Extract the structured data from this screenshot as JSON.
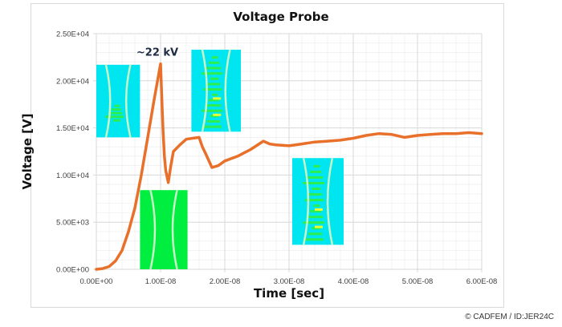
{
  "chart_data": {
    "type": "line",
    "title": "Voltage Probe",
    "xlabel": "Time [sec]",
    "ylabel": "Voltage [V]",
    "xlim": [
      0,
      6e-08
    ],
    "ylim": [
      0,
      25000
    ],
    "x_ticks": [
      "0.00E+00",
      "1.00E-08",
      "2.00E-08",
      "3.00E-08",
      "4.00E-08",
      "5.00E-08",
      "6.00E-08"
    ],
    "y_ticks": [
      "0.00E+00",
      "5.00E+03",
      "1.00E+04",
      "1.50E+04",
      "2.00E+04",
      "2.50E+04"
    ],
    "grid": true,
    "minor_grid": true,
    "legend": null,
    "series": [
      {
        "name": "Voltage Probe",
        "color": "#e8702a",
        "x": [
          0,
          1e-09,
          2e-09,
          3e-09,
          4e-09,
          5e-09,
          6e-09,
          7e-09,
          8e-09,
          9e-09,
          1e-08,
          1.02e-08,
          1.04e-08,
          1.06e-08,
          1.08e-08,
          1.12e-08,
          1.16e-08,
          1.2e-08,
          1.3e-08,
          1.4e-08,
          1.5e-08,
          1.6e-08,
          1.65e-08,
          1.7e-08,
          1.8e-08,
          1.9e-08,
          2e-08,
          2.2e-08,
          2.4e-08,
          2.6e-08,
          2.7e-08,
          2.8e-08,
          3e-08,
          3.2e-08,
          3.4e-08,
          3.6e-08,
          3.8e-08,
          4e-08,
          4.2e-08,
          4.4e-08,
          4.6e-08,
          4.8e-08,
          5e-08,
          5.2e-08,
          5.4e-08,
          5.6e-08,
          5.8e-08,
          6e-08
        ],
        "y": [
          0,
          80,
          300,
          900,
          2000,
          4000,
          6500,
          10000,
          14000,
          18000,
          21800,
          18000,
          14500,
          12000,
          10500,
          9200,
          11000,
          12500,
          13200,
          13800,
          13900,
          14000,
          13000,
          12300,
          10800,
          11000,
          11500,
          12000,
          12700,
          13600,
          13300,
          13200,
          13100,
          13300,
          13500,
          13600,
          13700,
          13900,
          14200,
          14400,
          14300,
          14000,
          14200,
          14300,
          14400,
          14400,
          14500,
          14400
        ]
      }
    ],
    "annotations": [
      {
        "text": "~22 kV",
        "x": 1e-08,
        "y": 22000
      }
    ],
    "insets": [
      {
        "name": "field-plot-early",
        "x0": 0.0,
        "x1": 6.8e-09,
        "y0": 14000,
        "y1": 21700,
        "background": "#00e6f0",
        "highlight": "#33ee33"
      },
      {
        "name": "field-plot-initial",
        "x0": 6.8e-09,
        "x1": 1.42e-08,
        "y0": 0,
        "y1": 8400,
        "background": "#00ee40",
        "highlight": "#00ee40"
      },
      {
        "name": "field-plot-peak",
        "x0": 1.48e-08,
        "x1": 2.25e-08,
        "y0": 14600,
        "y1": 23300,
        "background": "#00e6f0",
        "highlight": "#33ee33"
      },
      {
        "name": "field-plot-late",
        "x0": 3.05e-08,
        "x1": 3.85e-08,
        "y0": 2600,
        "y1": 11800,
        "background": "#00e6f0",
        "highlight": "#33ee33"
      }
    ]
  },
  "texts": {
    "title": "Voltage Probe",
    "xlabel": "Time [sec]",
    "ylabel": "Voltage [V]",
    "annotation": "~22 kV",
    "copyright": "© CADFEM / ID:JER24C"
  },
  "colors": {
    "line": "#e8702a",
    "major_grid": "#d9d9d9",
    "minor_grid": "#eeeeee",
    "axis_text": "#404040"
  }
}
